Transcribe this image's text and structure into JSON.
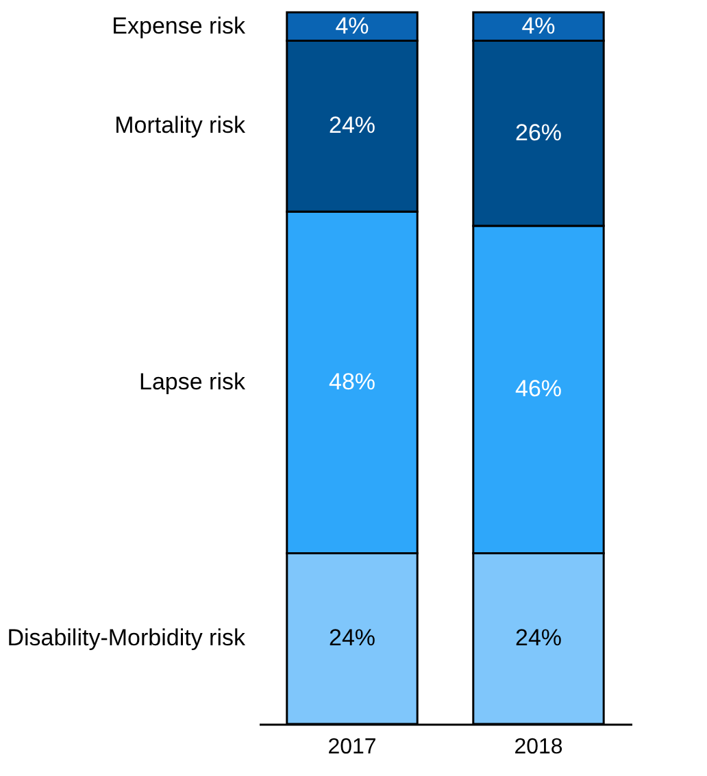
{
  "chart_data": {
    "type": "bar",
    "stacked": true,
    "legend": false,
    "categories": [
      "2017",
      "2018"
    ],
    "series": [
      {
        "name": "Disability-Morbidity risk",
        "color": "#7fc6fb",
        "values": [
          24,
          24
        ],
        "value_labels": [
          "24%",
          "24%"
        ]
      },
      {
        "name": "Lapse risk",
        "color": "#2ea7fa",
        "values": [
          48,
          46
        ],
        "value_labels": [
          "48%",
          "46%"
        ]
      },
      {
        "name": "Mortality risk",
        "color": "#004f8d",
        "values": [
          24,
          26
        ],
        "value_labels": [
          "24%",
          "26%"
        ]
      },
      {
        "name": "Expense risk",
        "color": "#0a64b3",
        "values": [
          4,
          4
        ],
        "value_labels": [
          "4%",
          "4%"
        ]
      }
    ]
  }
}
